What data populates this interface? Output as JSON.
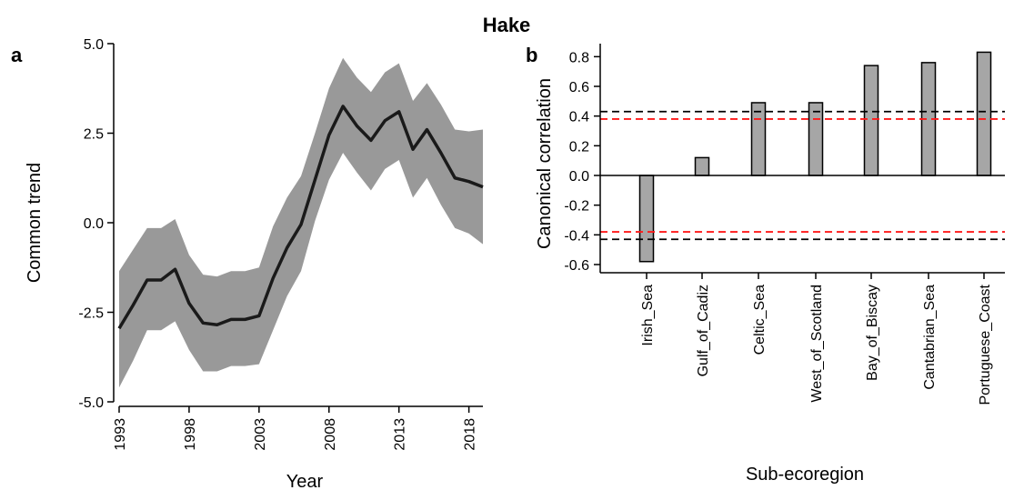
{
  "figure": {
    "title": "Hake"
  },
  "colors": {
    "line": "#1a1a1a",
    "ribbon": "#999999",
    "bar_fill": "#a6a6a6",
    "bar_stroke": "#000000",
    "threshold_black": "#000000",
    "threshold_red": "#ff1a1a"
  },
  "chart_data": [
    {
      "panel": "a",
      "type": "line",
      "xlabel": "Year",
      "ylabel": "Common trend",
      "xlim": [
        1993,
        2019
      ],
      "ylim": [
        -5,
        5
      ],
      "xticks": [
        "1993",
        "1998",
        "2003",
        "2008",
        "2013",
        "2018"
      ],
      "yticks": [
        "5.0",
        "2.5",
        "0.0",
        "-2.5",
        "-5.0"
      ],
      "x": [
        1993,
        1994,
        1995,
        1996,
        1997,
        1998,
        1999,
        2000,
        2001,
        2002,
        2003,
        2004,
        2005,
        2006,
        2007,
        2008,
        2009,
        2010,
        2011,
        2012,
        2013,
        2014,
        2015,
        2016,
        2017,
        2018,
        2019
      ],
      "series": [
        {
          "values": [
            -2.95,
            -2.3,
            -1.6,
            -1.6,
            -1.3,
            -2.25,
            -2.8,
            -2.85,
            -2.7,
            -2.7,
            -2.6,
            -1.55,
            -0.7,
            -0.05,
            1.2,
            2.45,
            3.25,
            2.7,
            2.3,
            2.85,
            3.1,
            2.05,
            2.6,
            1.95,
            1.25,
            1.15,
            1.0
          ]
        }
      ],
      "band": {
        "lower": [
          -4.6,
          -3.85,
          -3.0,
          -3.0,
          -2.75,
          -3.55,
          -4.15,
          -4.15,
          -4.0,
          -4.0,
          -3.95,
          -3.0,
          -2.05,
          -1.35,
          0.05,
          1.2,
          1.95,
          1.4,
          0.9,
          1.5,
          1.75,
          0.7,
          1.25,
          0.5,
          -0.15,
          -0.3,
          -0.6
        ],
        "upper": [
          -1.35,
          -0.75,
          -0.15,
          -0.15,
          0.1,
          -0.9,
          -1.45,
          -1.5,
          -1.35,
          -1.35,
          -1.25,
          -0.1,
          0.7,
          1.3,
          2.5,
          3.75,
          4.6,
          4.05,
          3.65,
          4.2,
          4.45,
          3.4,
          3.9,
          3.3,
          2.6,
          2.55,
          2.6
        ]
      }
    },
    {
      "panel": "b",
      "type": "bar",
      "xlabel": "Sub-ecoregion",
      "ylabel": "Canonical correlation",
      "ylim": [
        -0.65,
        0.9
      ],
      "yticks": [
        "0.8",
        "0.6",
        "0.4",
        "0.2",
        "0.0",
        "-0.2",
        "-0.4",
        "-0.6"
      ],
      "categories": [
        "Irish_Sea",
        "Gulf_of_Cadiz",
        "Celtic_Sea",
        "West_of_Scotland",
        "Bay_of_Biscay",
        "Cantabrian_Sea",
        "Portuguese_Coast"
      ],
      "values": [
        -0.58,
        0.12,
        0.49,
        0.49,
        0.74,
        0.76,
        0.83
      ],
      "reference_lines": [
        {
          "value": 0.43,
          "style": "dashed",
          "color": "black"
        },
        {
          "value": 0.38,
          "style": "dashed",
          "color": "red"
        },
        {
          "value": -0.38,
          "style": "dashed",
          "color": "red"
        },
        {
          "value": -0.43,
          "style": "dashed",
          "color": "black"
        }
      ]
    }
  ]
}
